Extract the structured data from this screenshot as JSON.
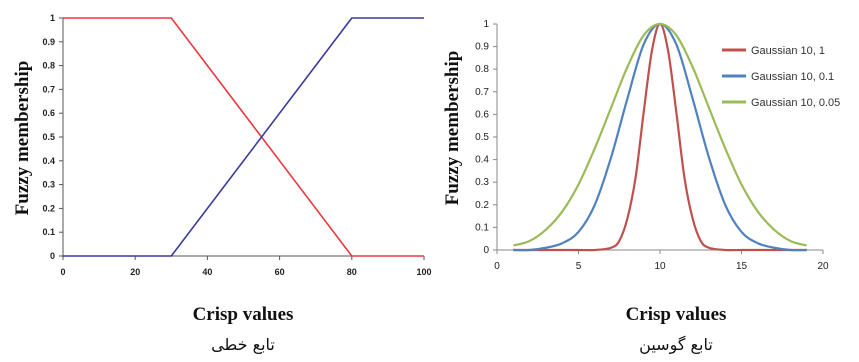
{
  "chart_data": [
    {
      "type": "line",
      "title": "",
      "xlabel": "Crisp values",
      "ylabel": "Fuzzy membership",
      "caption": "تابع خطی",
      "xlim": [
        0,
        100
      ],
      "ylim": [
        0,
        1
      ],
      "xticks": [
        "0",
        "20",
        "40",
        "60",
        "80",
        "100"
      ],
      "yticks": [
        "0",
        "0.1",
        "0.2",
        "0.3",
        "0.4",
        "0.5",
        "0.6",
        "0.7",
        "0.8",
        "0.9",
        "1"
      ],
      "grid": false,
      "series": [
        {
          "color": "#e8393f",
          "x": [
            0,
            30,
            80,
            100
          ],
          "y": [
            1,
            1,
            0,
            0
          ]
        },
        {
          "color": "#3a3a9c",
          "x": [
            0,
            30,
            80,
            100
          ],
          "y": [
            0,
            0,
            1,
            1
          ]
        }
      ]
    },
    {
      "type": "line",
      "title": "",
      "xlabel": "Crisp values",
      "ylabel": "Fuzzy membership",
      "caption": "تابع گوسین",
      "xlim": [
        0,
        20
      ],
      "ylim": [
        0,
        1
      ],
      "xticks": [
        "0",
        "5",
        "10",
        "15",
        "20"
      ],
      "yticks": [
        "0",
        "0.1",
        "0.2",
        "0.3",
        "0.4",
        "0.5",
        "0.6",
        "0.7",
        "0.8",
        "0.9",
        "1"
      ],
      "grid": false,
      "legend_position": "top-right",
      "series": [
        {
          "name": "Gaussian 10, 1",
          "color": "#c0504d",
          "x": [
            1,
            2,
            3,
            4,
            5,
            6,
            7,
            7.5,
            8,
            8.5,
            9,
            9.5,
            10,
            10.5,
            11,
            11.5,
            12,
            12.5,
            13,
            14,
            15,
            16,
            17,
            18,
            19
          ],
          "y": [
            0,
            0,
            0,
            0,
            0,
            0,
            0.01,
            0.04,
            0.14,
            0.32,
            0.61,
            0.88,
            1,
            0.88,
            0.61,
            0.32,
            0.14,
            0.04,
            0.01,
            0,
            0,
            0,
            0,
            0,
            0
          ]
        },
        {
          "name": "Gaussian 10, 0.1",
          "color": "#4f81bd",
          "x": [
            1,
            2,
            3,
            4,
            5,
            6,
            7,
            8,
            9,
            10,
            11,
            12,
            13,
            14,
            15,
            16,
            17,
            18,
            19
          ],
          "y": [
            0,
            0,
            0.01,
            0.03,
            0.08,
            0.2,
            0.41,
            0.67,
            0.91,
            1,
            0.91,
            0.67,
            0.41,
            0.2,
            0.08,
            0.03,
            0.01,
            0,
            0
          ]
        },
        {
          "name": "Gaussian 10, 0.05",
          "color": "#9bbb59",
          "x": [
            1,
            2,
            3,
            4,
            5,
            6,
            7,
            8,
            9,
            10,
            11,
            12,
            13,
            14,
            15,
            16,
            17,
            18,
            19
          ],
          "y": [
            0.02,
            0.04,
            0.09,
            0.17,
            0.29,
            0.45,
            0.63,
            0.81,
            0.95,
            1,
            0.95,
            0.81,
            0.63,
            0.45,
            0.29,
            0.17,
            0.09,
            0.04,
            0.02
          ]
        }
      ]
    }
  ]
}
